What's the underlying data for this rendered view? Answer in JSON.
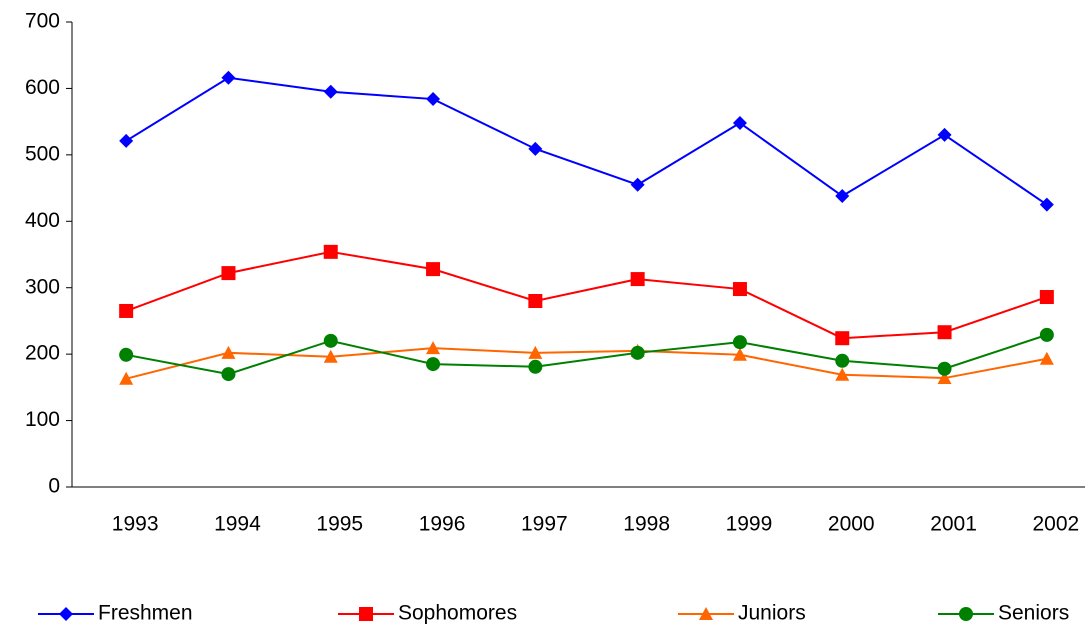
{
  "chart_data": {
    "type": "line",
    "categories": [
      "1993",
      "1994",
      "1995",
      "1996",
      "1997",
      "1998",
      "1999",
      "2000",
      "2001",
      "2002"
    ],
    "series": [
      {
        "name": "Freshmen",
        "color": "#0000ff",
        "marker": "diamond",
        "values": [
          521,
          616,
          595,
          584,
          509,
          455,
          548,
          438,
          530,
          425
        ]
      },
      {
        "name": "Sophomores",
        "color": "#ff0000",
        "marker": "square",
        "values": [
          265,
          322,
          354,
          328,
          280,
          313,
          298,
          224,
          233,
          286
        ]
      },
      {
        "name": "Juniors",
        "color": "#ff6600",
        "marker": "triangle",
        "values": [
          163,
          202,
          196,
          209,
          202,
          205,
          199,
          169,
          164,
          193
        ]
      },
      {
        "name": "Seniors",
        "color": "#008000",
        "marker": "circle",
        "values": [
          199,
          170,
          220,
          185,
          181,
          202,
          218,
          190,
          178,
          229
        ]
      }
    ],
    "ylim": [
      0,
      700
    ],
    "yticks": [
      0,
      100,
      200,
      300,
      400,
      500,
      600,
      700
    ],
    "grid": false,
    "legend": "bottom"
  }
}
